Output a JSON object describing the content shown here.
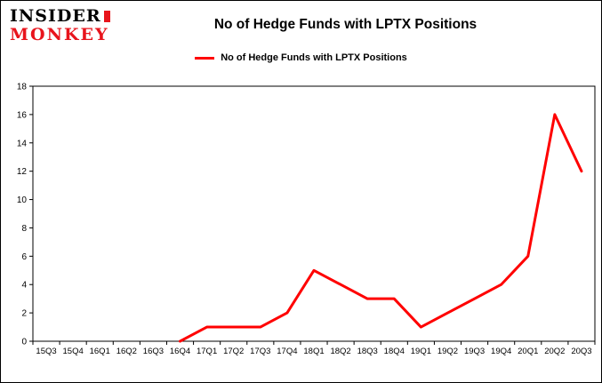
{
  "logo": {
    "line1": "INSIDER",
    "line2": "MONKEY"
  },
  "header": {
    "title": "No of Hedge Funds with LPTX Positions"
  },
  "legend": {
    "label": "No of Hedge Funds with LPTX Positions",
    "color": "#ff0000"
  },
  "chart_data": {
    "type": "line",
    "title": "No of Hedge Funds with LPTX Positions",
    "categories": [
      "15Q3",
      "15Q4",
      "16Q1",
      "16Q2",
      "16Q3",
      "16Q4",
      "17Q1",
      "17Q2",
      "17Q3",
      "17Q4",
      "18Q1",
      "18Q2",
      "18Q3",
      "18Q4",
      "19Q1",
      "19Q2",
      "19Q3",
      "19Q4",
      "20Q1",
      "20Q2",
      "20Q3"
    ],
    "series": [
      {
        "name": "No of Hedge Funds with LPTX Positions",
        "color": "#ff0000",
        "values": [
          null,
          null,
          null,
          null,
          null,
          0,
          1,
          1,
          1,
          2,
          5,
          4,
          3,
          3,
          1,
          2,
          3,
          4,
          6,
          16,
          12
        ]
      }
    ],
    "xlabel": "",
    "ylabel": "",
    "ylim": [
      0,
      18
    ],
    "yticks": [
      0,
      2,
      4,
      6,
      8,
      10,
      12,
      14,
      16,
      18
    ],
    "grid": false,
    "legend_position": "top-center"
  }
}
